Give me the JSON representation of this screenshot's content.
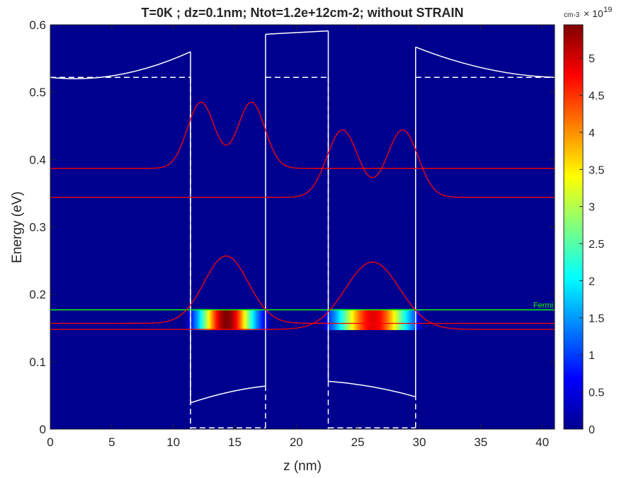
{
  "chart_data": {
    "type": "heatmap",
    "title": "T=0K ; dz=0.1nm; Ntot=1.2e+12cm-2; without STRAIN",
    "xlabel": "z (nm)",
    "ylabel": "Energy (eV)",
    "xlim": [
      0,
      41
    ],
    "ylim": [
      0,
      0.6
    ],
    "x_ticks": [
      "0",
      "5",
      "10",
      "15",
      "20",
      "25",
      "30",
      "35",
      "40"
    ],
    "y_ticks": [
      "0",
      "0.1",
      "0.2",
      "0.3",
      "0.4",
      "0.5",
      "0.6"
    ],
    "background_color": "#00008f",
    "colorbar": {
      "unit_label": "cm-3",
      "exponent_label": "× 10",
      "exponent": "19",
      "range": [
        0,
        5.45
      ],
      "ticks": [
        "0",
        "0.5",
        "1",
        "1.5",
        "2",
        "2.5",
        "3",
        "3.5",
        "4",
        "4.5",
        "5"
      ],
      "colormap": "jet"
    },
    "fermi_level": {
      "label": "Fermi",
      "energy": 0.177,
      "color": "#00ff00"
    },
    "conduction_band": {
      "color": "#ffffff",
      "segments": [
        [
          [
            0,
            0.522
          ],
          [
            5.5,
            0.511
          ],
          [
            11.4,
            0.56
          ]
        ],
        [
          [
            11.4,
            0.56
          ],
          [
            11.4,
            0.039
          ]
        ],
        [
          [
            11.4,
            0.039
          ],
          [
            14.5,
            0.058
          ],
          [
            17.5,
            0.064
          ]
        ],
        [
          [
            17.5,
            0.064
          ],
          [
            17.5,
            0.586
          ]
        ],
        [
          [
            17.5,
            0.586
          ],
          [
            22.6,
            0.591
          ]
        ],
        [
          [
            22.6,
            0.591
          ],
          [
            22.6,
            0.071
          ]
        ],
        [
          [
            22.6,
            0.071
          ],
          [
            26.2,
            0.066
          ],
          [
            29.7,
            0.048
          ]
        ],
        [
          [
            29.7,
            0.048
          ],
          [
            29.7,
            0.567
          ]
        ],
        [
          [
            29.7,
            0.567
          ],
          [
            35.5,
            0.525
          ],
          [
            41,
            0.522
          ]
        ]
      ]
    },
    "reference_band_dashed": {
      "color": "#ffffff",
      "segments": [
        [
          [
            0,
            0.522
          ],
          [
            11.4,
            0.522
          ]
        ],
        [
          [
            11.4,
            0.522
          ],
          [
            11.4,
            0.0
          ]
        ],
        [
          [
            11.4,
            0.002
          ],
          [
            17.5,
            0.002
          ]
        ],
        [
          [
            17.5,
            0.002
          ],
          [
            17.5,
            0.064
          ]
        ],
        [
          [
            22.6,
            0.522
          ],
          [
            22.6,
            0.0
          ]
        ],
        [
          [
            22.6,
            0.002
          ],
          [
            29.7,
            0.002
          ]
        ],
        [
          [
            29.7,
            0.002
          ],
          [
            29.7,
            0.522
          ]
        ],
        [
          [
            17.5,
            0.522
          ],
          [
            22.6,
            0.522
          ]
        ],
        [
          [
            29.7,
            0.522
          ],
          [
            41,
            0.522
          ]
        ]
      ]
    },
    "wavefunctions": {
      "color": "#ff0000",
      "series": [
        {
          "baseline": 0.148,
          "shape": "single",
          "center": 26.2,
          "sigma": 2.2,
          "amplitude": 0.1
        },
        {
          "baseline": 0.157,
          "shape": "single",
          "center": 14.3,
          "sigma": 1.8,
          "amplitude": 0.1
        },
        {
          "baseline": 0.344,
          "shape": "double",
          "center": 26.2,
          "sigma": 1.25,
          "offset": 2.45,
          "amplitude": 0.1,
          "dip": 0.066
        },
        {
          "baseline": 0.387,
          "shape": "double",
          "center": 14.3,
          "sigma": 1.1,
          "offset": 2.05,
          "amplitude": 0.098,
          "dip": 0.002
        }
      ]
    },
    "density_map": {
      "band": [
        0.147,
        0.178
      ],
      "wells": [
        {
          "z_range": [
            11.4,
            17.5
          ],
          "center": 14.3,
          "sigma": 1.5,
          "peak": 5.45
        },
        {
          "z_range": [
            22.6,
            29.7
          ],
          "center": 26.2,
          "sigma": 2.0,
          "peak": 4.9
        }
      ]
    }
  }
}
